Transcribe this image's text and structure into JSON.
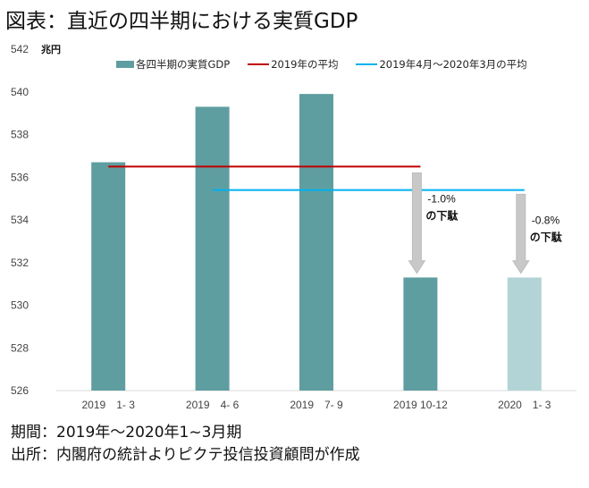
{
  "title": "図表：直近の四半期における実質GDP",
  "footer": {
    "period": "期間：2019年～2020年1~3月期",
    "source": "出所：内閣府の統計よりピクテ投信投資顧問が作成"
  },
  "chart_data": {
    "type": "bar",
    "title": "図表：直近の四半期における実質GDP",
    "unit_label": "兆円",
    "categories": [
      "2019　1- 3",
      "2019　4- 6",
      "2019　7- 9",
      "2019 10-12",
      "2020　1- 3"
    ],
    "series": [
      {
        "name": "各四半期の実質GDP",
        "values": [
          536.7,
          539.3,
          539.9,
          531.3,
          531.3
        ],
        "color": "#5f9ea0",
        "highlight_color": "#b3d4d6"
      }
    ],
    "reference_lines": [
      {
        "name": "2019年の平均",
        "value": 536.5,
        "from_category": 0,
        "to_category": 3,
        "color": "#c00000"
      },
      {
        "name": "2019年4月～2020年3月の平均",
        "value": 535.4,
        "from_category": 1,
        "to_category": 4,
        "color": "#00b0f0"
      }
    ],
    "annotations": [
      {
        "category": 3,
        "text_line1": "-1.0%",
        "text_line2": "の下駄",
        "from_value": 536.2,
        "to_value": 531.5
      },
      {
        "category": 4,
        "text_line1": "-0.8%",
        "text_line2": "の下駄",
        "from_value": 535.2,
        "to_value": 531.5
      }
    ],
    "ylim": [
      526,
      542
    ],
    "yticks": [
      526,
      528,
      530,
      532,
      534,
      536,
      538,
      540,
      542
    ],
    "xlabel": "",
    "ylabel": "兆円",
    "legend_position": "top",
    "grid": false
  }
}
